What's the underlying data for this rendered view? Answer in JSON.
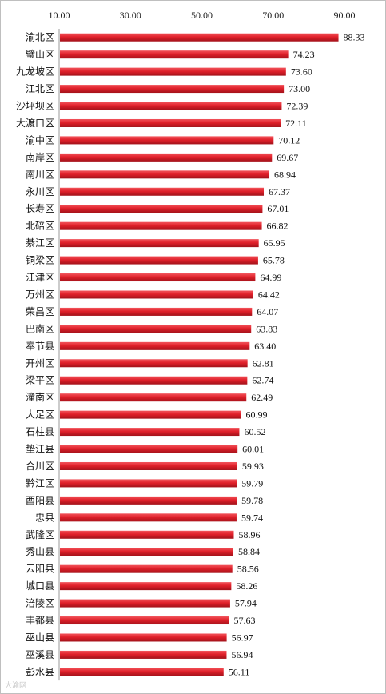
{
  "chart_data": {
    "type": "bar",
    "orientation": "horizontal",
    "title": "",
    "xlabel": "",
    "ylabel": "",
    "xlim": [
      10,
      90
    ],
    "xticks": [
      "10.00",
      "30.00",
      "50.00",
      "70.00",
      "90.00"
    ],
    "xtick_values": [
      10,
      30,
      50,
      70,
      90
    ],
    "tick_position": "top",
    "grid": false,
    "legend": "none",
    "bar_color": "#e0202a",
    "categories": [
      "渝北区",
      "璧山区",
      "九龙坡区",
      "江北区",
      "沙坪坝区",
      "大渡口区",
      "渝中区",
      "南岸区",
      "南川区",
      "永川区",
      "长寿区",
      "北碚区",
      "綦江区",
      "铜梁区",
      "江津区",
      "万州区",
      "荣昌区",
      "巴南区",
      "奉节县",
      "开州区",
      "梁平区",
      "潼南区",
      "大足区",
      "石柱县",
      "垫江县",
      "合川区",
      "黔江区",
      "酉阳县",
      "忠县",
      "武隆区",
      "秀山县",
      "云阳县",
      "城口县",
      "涪陵区",
      "丰都县",
      "巫山县",
      "巫溪县",
      "彭水县"
    ],
    "values": [
      88.33,
      74.23,
      73.6,
      73.0,
      72.39,
      72.11,
      70.12,
      69.67,
      68.94,
      67.37,
      67.01,
      66.82,
      65.95,
      65.78,
      64.99,
      64.42,
      64.07,
      63.83,
      63.4,
      62.81,
      62.74,
      62.49,
      60.99,
      60.52,
      60.01,
      59.93,
      59.79,
      59.78,
      59.74,
      58.96,
      58.84,
      58.56,
      58.26,
      57.94,
      57.63,
      56.97,
      56.94,
      56.11
    ],
    "value_labels": [
      "88.33",
      "74.23",
      "73.60",
      "73.00",
      "72.39",
      "72.11",
      "70.12",
      "69.67",
      "68.94",
      "67.37",
      "67.01",
      "66.82",
      "65.95",
      "65.78",
      "64.99",
      "64.42",
      "64.07",
      "63.83",
      "63.40",
      "62.81",
      "62.74",
      "62.49",
      "60.99",
      "60.52",
      "60.01",
      "59.93",
      "59.79",
      "59.78",
      "59.74",
      "58.96",
      "58.84",
      "58.56",
      "58.26",
      "57.94",
      "57.63",
      "56.97",
      "56.94",
      "56.11"
    ]
  },
  "watermark": "大渝网"
}
